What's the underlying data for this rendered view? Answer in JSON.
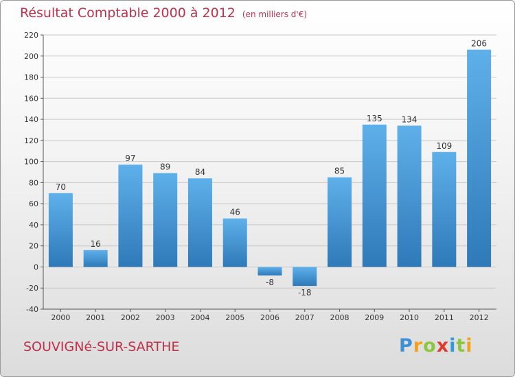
{
  "header": {
    "title": "Résultat Comptable 2000 à 2012",
    "unit": "(en milliers d'€)"
  },
  "footer": {
    "commune": "SOUVIGNé-SUR-SARTHE",
    "logo_text": "Proxiti"
  },
  "colors": {
    "accent": "#c0304a",
    "bar_light": "#5eb0ea",
    "bar_dark": "#2f79b8"
  },
  "chart_data": {
    "type": "bar",
    "title": "Résultat Comptable 2000 à 2012",
    "subtitle": "(en milliers d'€)",
    "categories": [
      "2000",
      "2001",
      "2002",
      "2003",
      "2004",
      "2005",
      "2006",
      "2007",
      "2008",
      "2009",
      "2010",
      "2011",
      "2012"
    ],
    "values": [
      70,
      16,
      97,
      89,
      84,
      46,
      -8,
      -18,
      85,
      135,
      134,
      109,
      206
    ],
    "ylim": [
      -40,
      220
    ],
    "yticks": [
      -40,
      -20,
      0,
      20,
      40,
      60,
      80,
      100,
      120,
      140,
      160,
      180,
      200,
      220
    ],
    "grid": true
  }
}
